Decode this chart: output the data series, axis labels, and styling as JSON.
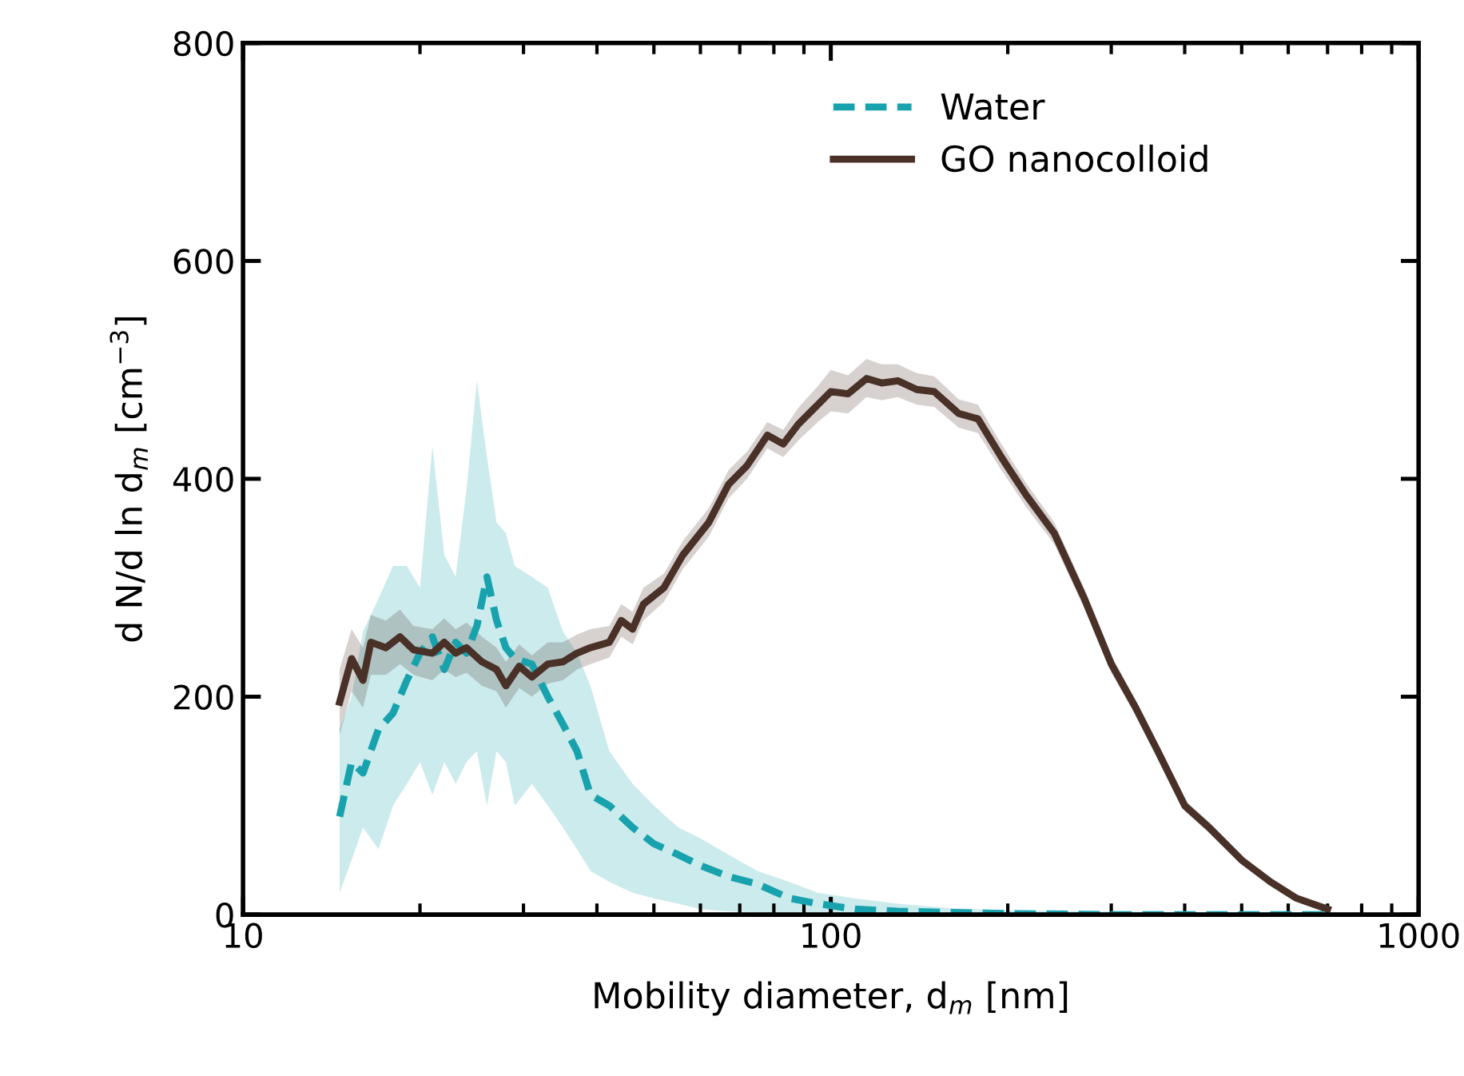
{
  "chart_data": {
    "type": "line",
    "xlabel": "Mobility diameter, d$_{m}$ [nm]",
    "ylabel": "d N/d ln d$_{m}$ [cm$^{−3}$]",
    "log": "x",
    "xlim": [
      10,
      1000
    ],
    "xticks": [
      10,
      100,
      1000
    ],
    "ylim": [
      0,
      800
    ],
    "yticks": [
      0,
      200,
      400,
      600,
      800
    ],
    "grid": false,
    "legend": "top right",
    "series": [
      {
        "name": "Water",
        "color": "#17a2ad",
        "line_style": "dashed",
        "x": [
          14.6,
          15.3,
          16,
          17,
          18,
          19,
          20,
          21,
          22,
          23,
          24,
          25,
          26,
          27,
          28,
          29,
          31,
          33,
          35,
          37,
          39,
          42,
          46,
          50,
          55,
          60,
          67,
          75,
          85,
          95,
          110,
          130,
          160,
          200,
          300,
          500,
          700
        ],
        "values": [
          90,
          140,
          130,
          170,
          185,
          215,
          240,
          255,
          225,
          250,
          240,
          265,
          310,
          270,
          245,
          235,
          230,
          200,
          175,
          150,
          110,
          100,
          80,
          65,
          55,
          45,
          35,
          28,
          15,
          10,
          5,
          3,
          2,
          1,
          0,
          0,
          0
        ],
        "lower": [
          20,
          50,
          80,
          60,
          100,
          120,
          140,
          110,
          140,
          120,
          140,
          150,
          100,
          150,
          140,
          100,
          120,
          100,
          80,
          60,
          40,
          30,
          20,
          15,
          10,
          5,
          3,
          2,
          0,
          0,
          0,
          0,
          0,
          0,
          0,
          0,
          0
        ],
        "upper": [
          170,
          200,
          260,
          290,
          320,
          320,
          300,
          430,
          330,
          310,
          390,
          490,
          420,
          360,
          350,
          320,
          310,
          300,
          260,
          240,
          210,
          150,
          120,
          100,
          80,
          70,
          55,
          40,
          30,
          20,
          15,
          10,
          6,
          4,
          3,
          2,
          2
        ]
      },
      {
        "name": "GO nanocolloid",
        "color": "#4a3128",
        "line_style": "solid",
        "x": [
          14.6,
          15.3,
          16,
          16.5,
          17.5,
          18.5,
          19.5,
          21,
          22,
          23,
          24,
          25.5,
          27,
          28,
          29.5,
          31,
          33,
          35,
          37,
          39,
          42,
          44,
          46,
          48,
          52,
          56,
          62,
          67,
          72,
          78,
          83,
          88,
          95,
          100,
          107,
          115,
          122,
          130,
          140,
          150,
          165,
          178,
          195,
          215,
          240,
          270,
          300,
          330,
          360,
          400,
          440,
          500,
          560,
          620,
          700
        ],
        "values": [
          195,
          235,
          215,
          250,
          245,
          255,
          243,
          240,
          250,
          240,
          245,
          232,
          225,
          210,
          228,
          218,
          230,
          232,
          240,
          245,
          250,
          270,
          262,
          285,
          300,
          330,
          360,
          395,
          412,
          440,
          432,
          450,
          468,
          480,
          478,
          492,
          488,
          490,
          482,
          480,
          460,
          455,
          420,
          385,
          350,
          290,
          230,
          190,
          150,
          100,
          80,
          50,
          30,
          15,
          5
        ],
        "lower": [
          165,
          205,
          190,
          220,
          220,
          230,
          220,
          215,
          225,
          218,
          222,
          210,
          205,
          190,
          208,
          200,
          212,
          215,
          225,
          230,
          236,
          255,
          248,
          270,
          287,
          317,
          347,
          382,
          400,
          428,
          420,
          435,
          452,
          462,
          460,
          475,
          472,
          475,
          468,
          466,
          447,
          442,
          408,
          374,
          340,
          281,
          222,
          183,
          144,
          95,
          75,
          46,
          27,
          12,
          3
        ],
        "upper": [
          225,
          262,
          245,
          275,
          270,
          280,
          265,
          262,
          272,
          262,
          268,
          255,
          245,
          232,
          248,
          238,
          250,
          250,
          257,
          262,
          265,
          285,
          278,
          300,
          313,
          343,
          373,
          408,
          425,
          452,
          445,
          465,
          485,
          500,
          495,
          510,
          505,
          505,
          497,
          494,
          473,
          468,
          432,
          396,
          360,
          299,
          238,
          197,
          156,
          105,
          85,
          54,
          33,
          18,
          7
        ]
      }
    ]
  }
}
